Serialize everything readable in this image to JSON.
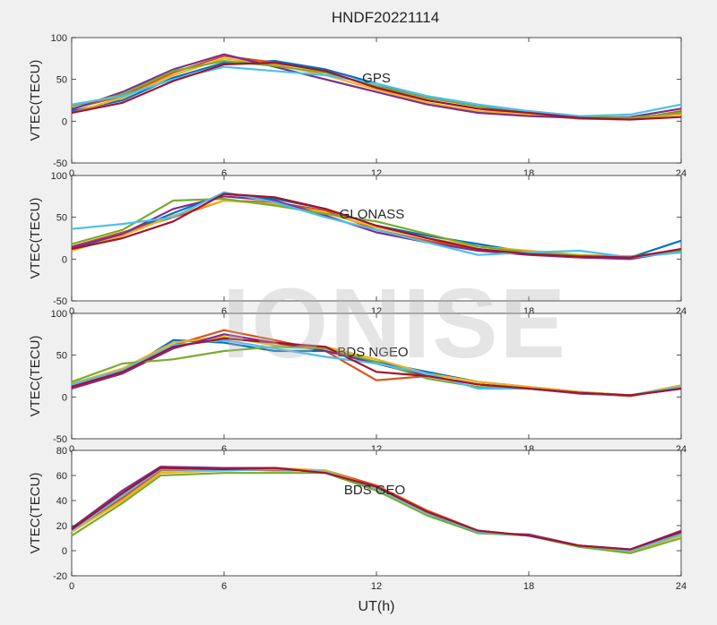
{
  "title": "HNDF20221114",
  "watermark": "IONISE",
  "xlabel": "UT(h)",
  "colors": [
    "#0072BD",
    "#D95319",
    "#EDB120",
    "#7E2F8E",
    "#77AC30",
    "#4DBEEE",
    "#A2142F"
  ],
  "chart_data": [
    {
      "type": "line",
      "panel_label": "GPS",
      "ylabel": "VTEC(TECU)",
      "xlim": [
        0,
        24
      ],
      "ylim": [
        -50,
        100
      ],
      "xticks": [
        0,
        6,
        12,
        18,
        24
      ],
      "yticks": [
        -50,
        0,
        50,
        100
      ],
      "series": [
        {
          "x": [
            0,
            2,
            4,
            6,
            8,
            10,
            12,
            14,
            16,
            18,
            20,
            22,
            24
          ],
          "y": [
            12,
            25,
            52,
            70,
            72,
            62,
            45,
            28,
            18,
            10,
            4,
            3,
            10
          ]
        },
        {
          "x": [
            0,
            2,
            4,
            6,
            8,
            10,
            12,
            14,
            16,
            18,
            20,
            22,
            24
          ],
          "y": [
            15,
            30,
            58,
            78,
            70,
            60,
            40,
            25,
            15,
            8,
            3,
            2,
            12
          ]
        },
        {
          "x": [
            0,
            2,
            4,
            6,
            8,
            10,
            12,
            14,
            16,
            18,
            20,
            22,
            24
          ],
          "y": [
            10,
            28,
            55,
            75,
            68,
            55,
            38,
            22,
            12,
            8,
            5,
            3,
            8
          ]
        },
        {
          "x": [
            0,
            2,
            4,
            6,
            8,
            10,
            12,
            14,
            16,
            18,
            20,
            22,
            24
          ],
          "y": [
            14,
            35,
            62,
            80,
            65,
            50,
            35,
            20,
            10,
            6,
            4,
            5,
            15
          ]
        },
        {
          "x": [
            0,
            2,
            4,
            6,
            8,
            10,
            12,
            14,
            16,
            18,
            20,
            22,
            24
          ],
          "y": [
            18,
            32,
            60,
            72,
            66,
            58,
            42,
            28,
            18,
            12,
            6,
            4,
            10
          ]
        },
        {
          "x": [
            0,
            2,
            4,
            6,
            8,
            10,
            12,
            14,
            16,
            18,
            20,
            22,
            24
          ],
          "y": [
            20,
            30,
            50,
            65,
            60,
            55,
            45,
            30,
            20,
            12,
            6,
            8,
            20
          ]
        },
        {
          "x": [
            0,
            2,
            4,
            6,
            8,
            10,
            12,
            14,
            16,
            18,
            20,
            22,
            24
          ],
          "y": [
            10,
            22,
            48,
            68,
            70,
            60,
            40,
            25,
            15,
            10,
            4,
            2,
            5
          ]
        }
      ]
    },
    {
      "type": "line",
      "panel_label": "GLONASS",
      "ylabel": "VTEC(TECU)",
      "xlim": [
        0,
        24
      ],
      "ylim": [
        -50,
        100
      ],
      "xticks": [
        0,
        6,
        12,
        18,
        24
      ],
      "yticks": [
        -50,
        0,
        50,
        100
      ],
      "series": [
        {
          "x": [
            0,
            2,
            4,
            6,
            8,
            10,
            12,
            14,
            16,
            18,
            20,
            22,
            24
          ],
          "y": [
            12,
            30,
            55,
            78,
            72,
            60,
            40,
            28,
            18,
            8,
            3,
            2,
            22
          ]
        },
        {
          "x": [
            0,
            2,
            4,
            6,
            8,
            10,
            12,
            14,
            16,
            18,
            20,
            22,
            24
          ],
          "y": [
            15,
            32,
            50,
            70,
            68,
            58,
            35,
            22,
            12,
            6,
            2,
            1,
            12
          ]
        },
        {
          "x": [
            0,
            2,
            4,
            6,
            8,
            10,
            12,
            14,
            16,
            18,
            20,
            22,
            24
          ],
          "y": [
            10,
            28,
            52,
            70,
            66,
            55,
            38,
            25,
            15,
            10,
            5,
            3,
            8
          ]
        },
        {
          "x": [
            0,
            2,
            4,
            6,
            8,
            10,
            12,
            14,
            16,
            18,
            20,
            22,
            24
          ],
          "y": [
            14,
            30,
            60,
            75,
            70,
            52,
            32,
            20,
            10,
            5,
            2,
            0,
            10
          ]
        },
        {
          "x": [
            0,
            2,
            4,
            6,
            8,
            10,
            12,
            14,
            16,
            18,
            20,
            22,
            24
          ],
          "y": [
            18,
            35,
            70,
            72,
            64,
            54,
            45,
            30,
            15,
            8,
            4,
            3,
            10
          ]
        },
        {
          "x": [
            0,
            2,
            4,
            6,
            8,
            10,
            12,
            14,
            16,
            18,
            20,
            22,
            24
          ],
          "y": [
            36,
            42,
            50,
            80,
            68,
            50,
            35,
            20,
            5,
            8,
            10,
            2,
            8
          ]
        },
        {
          "x": [
            0,
            2,
            4,
            6,
            8,
            10,
            12,
            14,
            16,
            18,
            20,
            22,
            24
          ],
          "y": [
            12,
            25,
            45,
            78,
            74,
            60,
            40,
            25,
            12,
            6,
            3,
            2,
            12
          ]
        }
      ]
    },
    {
      "type": "line",
      "panel_label": "BDS NGEO",
      "ylabel": "VTEC(TECU)",
      "xlim": [
        0,
        24
      ],
      "ylim": [
        -50,
        100
      ],
      "xticks": [
        0,
        6,
        12,
        18,
        24
      ],
      "yticks": [
        -50,
        0,
        50,
        100
      ],
      "series": [
        {
          "x": [
            0,
            2,
            4,
            6,
            8,
            10,
            12,
            14,
            16,
            18,
            20,
            22,
            24
          ],
          "y": [
            12,
            30,
            68,
            65,
            55,
            55,
            42,
            30,
            18,
            12,
            6,
            2,
            10
          ]
        },
        {
          "x": [
            0,
            2,
            4,
            6,
            8,
            10,
            12,
            14,
            16,
            18,
            20,
            22,
            24
          ],
          "y": [
            14,
            32,
            62,
            80,
            68,
            55,
            20,
            25,
            15,
            10,
            5,
            1,
            12
          ]
        },
        {
          "x": [
            0,
            2,
            4,
            6,
            8,
            10,
            12,
            14,
            16,
            18,
            20,
            22,
            24
          ],
          "y": [
            16,
            34,
            65,
            72,
            62,
            60,
            45,
            28,
            18,
            12,
            6,
            2,
            14
          ]
        },
        {
          "x": [
            0,
            2,
            4,
            6,
            8,
            10,
            12,
            14,
            16,
            18,
            20,
            22,
            24
          ],
          "y": [
            10,
            28,
            58,
            75,
            65,
            55,
            40,
            25,
            15,
            10,
            4,
            2,
            10
          ]
        },
        {
          "x": [
            0,
            2,
            4,
            6,
            8,
            10,
            12,
            14,
            16,
            18,
            20,
            22,
            24
          ],
          "y": [
            18,
            40,
            45,
            55,
            60,
            58,
            42,
            22,
            12,
            10,
            5,
            2,
            12
          ]
        },
        {
          "x": [
            0,
            2,
            4,
            6,
            8,
            10,
            12,
            14,
            16,
            18,
            20,
            22,
            24
          ],
          "y": [
            15,
            32,
            62,
            68,
            58,
            48,
            40,
            28,
            10,
            10,
            5,
            2,
            12
          ]
        },
        {
          "x": [
            0,
            2,
            4,
            6,
            8,
            10,
            12,
            14,
            16,
            18,
            20,
            22,
            24
          ],
          "y": [
            12,
            30,
            60,
            70,
            65,
            60,
            30,
            25,
            15,
            10,
            5,
            2,
            10
          ]
        }
      ]
    },
    {
      "type": "line",
      "panel_label": "BDS GEO",
      "ylabel": "VTEC(TECU)",
      "xlim": [
        0,
        24
      ],
      "ylim": [
        -20,
        80
      ],
      "xticks": [
        0,
        6,
        12,
        18,
        24
      ],
      "yticks": [
        -20,
        0,
        20,
        40,
        60,
        80
      ],
      "series": [
        {
          "x": [
            0,
            2,
            3.5,
            6,
            8,
            10,
            12,
            14,
            16,
            18,
            20,
            22,
            24
          ],
          "y": [
            18,
            45,
            66,
            64,
            65,
            63,
            52,
            30,
            15,
            12,
            4,
            0,
            12
          ]
        },
        {
          "x": [
            0,
            2,
            3.5,
            6,
            8,
            10,
            12,
            14,
            16,
            18,
            20,
            22,
            24
          ],
          "y": [
            16,
            42,
            64,
            65,
            64,
            64,
            52,
            32,
            16,
            12,
            4,
            0,
            14
          ]
        },
        {
          "x": [
            0,
            2,
            3.5,
            6,
            8,
            10,
            12,
            14,
            16,
            18,
            20,
            22,
            24
          ],
          "y": [
            15,
            40,
            62,
            64,
            66,
            64,
            50,
            30,
            15,
            12,
            3,
            -1,
            12
          ]
        },
        {
          "x": [
            0,
            2,
            3.5,
            6,
            8,
            10,
            12,
            14,
            16,
            18,
            20,
            22,
            24
          ],
          "y": [
            18,
            48,
            67,
            66,
            66,
            62,
            50,
            30,
            14,
            13,
            4,
            1,
            16
          ]
        },
        {
          "x": [
            0,
            2,
            3.5,
            6,
            8,
            10,
            12,
            14,
            16,
            18,
            20,
            22,
            24
          ],
          "y": [
            12,
            38,
            60,
            62,
            62,
            62,
            48,
            28,
            14,
            12,
            3,
            -2,
            10
          ]
        },
        {
          "x": [
            0,
            2,
            3.5,
            6,
            8,
            10,
            12,
            14,
            16,
            18,
            20,
            22,
            24
          ],
          "y": [
            16,
            44,
            65,
            64,
            65,
            63,
            50,
            30,
            15,
            12,
            4,
            0,
            13
          ]
        },
        {
          "x": [
            0,
            2,
            3.5,
            6,
            8,
            10,
            12,
            14,
            16,
            18,
            20,
            22,
            24
          ],
          "y": [
            17,
            46,
            66,
            65,
            66,
            62,
            51,
            31,
            16,
            12,
            4,
            1,
            15
          ]
        }
      ]
    }
  ]
}
